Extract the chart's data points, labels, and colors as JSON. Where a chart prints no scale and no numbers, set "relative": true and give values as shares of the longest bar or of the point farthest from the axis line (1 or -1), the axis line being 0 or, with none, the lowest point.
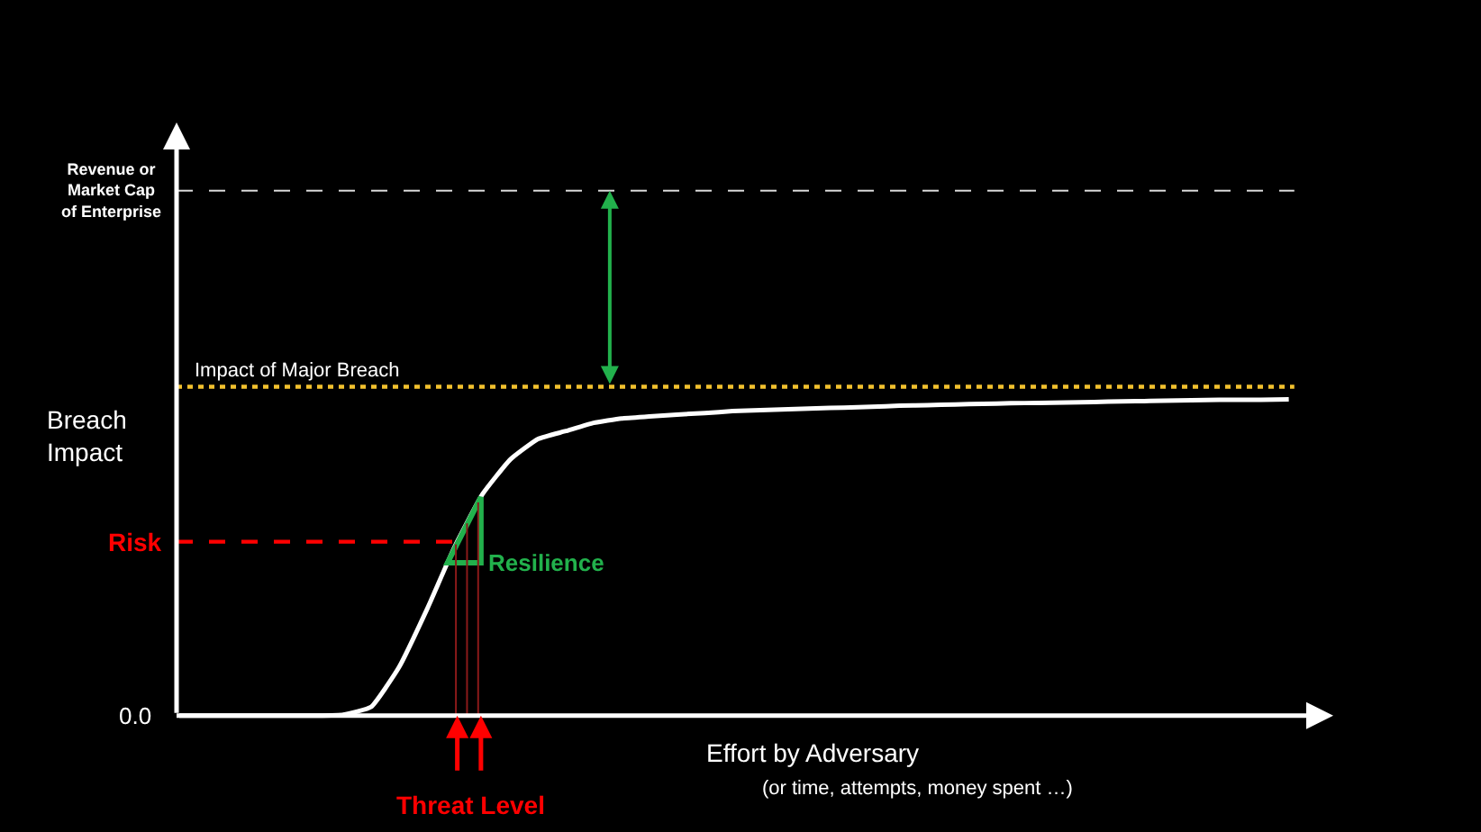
{
  "chart_data": {
    "type": "line",
    "relative": true,
    "color": "#ffffff",
    "categories": [
      null,
      null,
      null,
      null,
      null,
      null,
      null,
      null,
      null,
      null,
      null,
      null,
      null,
      null,
      null,
      null,
      null,
      null,
      null,
      null,
      null,
      null,
      null,
      null,
      null,
      null,
      null,
      null,
      null,
      null,
      null,
      null,
      null,
      null,
      null,
      null,
      null,
      null,
      null,
      null,
      null
    ],
    "values": [
      0,
      0,
      0,
      0,
      0,
      0,
      0.003,
      0.028,
      0.153,
      0.335,
      0.534,
      0.7,
      0.81,
      0.875,
      0.9,
      0.926,
      0.94,
      0.946,
      0.952,
      0.957,
      0.963,
      0.966,
      0.969,
      0.972,
      0.974,
      0.977,
      0.98,
      0.982,
      0.984,
      0.986,
      0.988,
      0.989,
      0.99,
      0.992,
      0.994,
      0.995,
      0.997,
      0.998,
      0.999,
      0.999,
      1
    ],
    "xlabel": "Effort by Adversary",
    "ylabel": "Breach Impact",
    "ref_lines": [
      {
        "axis": "y",
        "value": 1.66,
        "label": "Revenue or\nMarket Cap\nof Enterprise",
        "color": "#d9d9d9",
        "line_style": "dashed"
      },
      {
        "axis": "y",
        "value": 1.04,
        "label": "Impact of Major Breach",
        "color": "#f2c12e",
        "line_style": "dotted"
      },
      {
        "axis": "y",
        "value": 0.55,
        "label": "Risk",
        "color": "#ff0000",
        "line_style": "dashed"
      }
    ],
    "annotations": [
      "0.0",
      "(or time, attempts, money spent …)",
      "Resilience",
      "Threat Level"
    ]
  }
}
